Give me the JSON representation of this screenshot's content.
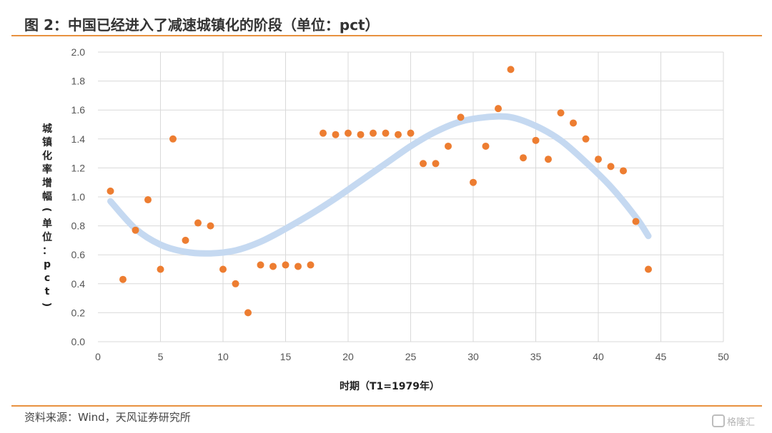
{
  "header": {
    "title": "图 2：中国已经进入了减速城镇化的阶段（单位：pct）"
  },
  "footer": {
    "source": "资料来源：Wind，天风证券研究所"
  },
  "watermark": {
    "text": "格隆汇"
  },
  "colors": {
    "points": "#ed7d31",
    "trend": "#c5d9f1",
    "accent_rule": "#e8913f",
    "grid": "#d9d9d9"
  },
  "chart_data": {
    "type": "scatter",
    "title": "",
    "xlabel": "时期（T1=1979年）",
    "ylabel": "城镇化率增幅（单位：pct）",
    "xlim": [
      0,
      50
    ],
    "ylim": [
      0,
      2.0
    ],
    "xticks": [
      0,
      5,
      10,
      15,
      20,
      25,
      30,
      35,
      40,
      45,
      50
    ],
    "yticks": [
      0.0,
      0.2,
      0.4,
      0.6,
      0.8,
      1.0,
      1.2,
      1.4,
      1.6,
      1.8,
      2.0
    ],
    "xtick_labels": [
      "0",
      "5",
      "10",
      "15",
      "20",
      "25",
      "30",
      "35",
      "40",
      "45",
      "50"
    ],
    "ytick_labels": [
      "0.0",
      "0.2",
      "0.4",
      "0.6",
      "0.8",
      "1.0",
      "1.2",
      "1.4",
      "1.6",
      "1.8",
      "2.0"
    ],
    "grid": "vertical and horizontal",
    "legend": "none",
    "series": [
      {
        "x": [
          1,
          2,
          3,
          4,
          5,
          6,
          7,
          8,
          9,
          10,
          11,
          12,
          13,
          14,
          15,
          16,
          17,
          18,
          19,
          20,
          21,
          22,
          23,
          24,
          25,
          26,
          27,
          28,
          29,
          30,
          31,
          32,
          33,
          34,
          35,
          36,
          37,
          38,
          39,
          40,
          41,
          42,
          43,
          44
        ],
        "y": [
          1.04,
          0.43,
          0.77,
          0.98,
          0.5,
          1.4,
          0.7,
          0.82,
          0.8,
          0.5,
          0.4,
          0.2,
          0.53,
          0.52,
          0.53,
          0.52,
          0.53,
          1.44,
          1.43,
          1.44,
          1.43,
          1.44,
          1.44,
          1.43,
          1.44,
          1.23,
          1.23,
          1.35,
          1.55,
          1.1,
          1.35,
          1.61,
          1.88,
          1.27,
          1.39,
          1.26,
          1.58,
          1.51,
          1.4,
          1.26,
          1.21,
          1.18,
          0.83,
          0.5
        ]
      }
    ],
    "trendline": {
      "type": "polynomial",
      "x": [
        1,
        3,
        5,
        7,
        9,
        11,
        13,
        15,
        17,
        19,
        21,
        23,
        25,
        27,
        29,
        31,
        33,
        35,
        37,
        39,
        41,
        43,
        44
      ],
      "y": [
        0.97,
        0.78,
        0.67,
        0.62,
        0.61,
        0.63,
        0.69,
        0.78,
        0.88,
        0.99,
        1.11,
        1.23,
        1.35,
        1.45,
        1.52,
        1.55,
        1.55,
        1.49,
        1.39,
        1.24,
        1.07,
        0.86,
        0.73
      ]
    }
  }
}
